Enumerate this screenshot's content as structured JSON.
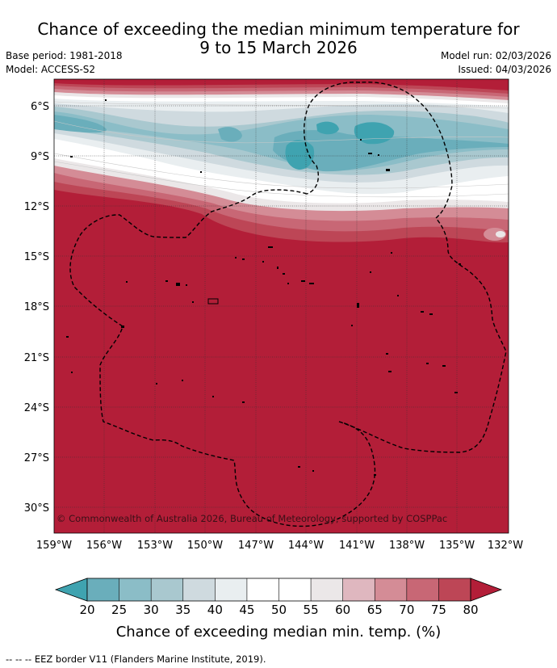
{
  "header": {
    "title_line1": "Chance of exceeding the median minimum temperature for",
    "title_line2": "9 to 15 March 2026",
    "base_period": "Base period: 1981-2018",
    "model": "Model: ACCESS-S2",
    "model_run": "Model run: 02/03/2026",
    "issued": "Issued: 04/03/2026"
  },
  "map": {
    "lat_labels": [
      "6°S",
      "9°S",
      "12°S",
      "15°S",
      "18°S",
      "21°S",
      "24°S",
      "27°S",
      "30°S"
    ],
    "lon_labels": [
      "159°W",
      "156°W",
      "153°W",
      "150°W",
      "147°W",
      "144°W",
      "141°W",
      "138°W",
      "135°W",
      "132°W"
    ],
    "credit": "© Commonwealth of Australia 2026, Bureau of Meteorology, supported by COSPPac",
    "background_color": "#b31e38"
  },
  "colorbar": {
    "ticks": [
      "20",
      "25",
      "30",
      "35",
      "40",
      "45",
      "50",
      "55",
      "60",
      "65",
      "70",
      "75",
      "80"
    ],
    "colors": [
      "#3fa3b0",
      "#6aaebb",
      "#8bbdc7",
      "#a9c8cf",
      "#cfdadf",
      "#e9eef0",
      "#ffffff",
      "#ffffff",
      "#ebe7e8",
      "#dfb7bf",
      "#d48c96",
      "#c86775",
      "#bd4656",
      "#b31e38"
    ],
    "title": "Chance of exceeding median min. temp. (%)"
  },
  "footnote": "--  --  -- EEZ border V11 (Flanders Marine Institute, 2019)."
}
